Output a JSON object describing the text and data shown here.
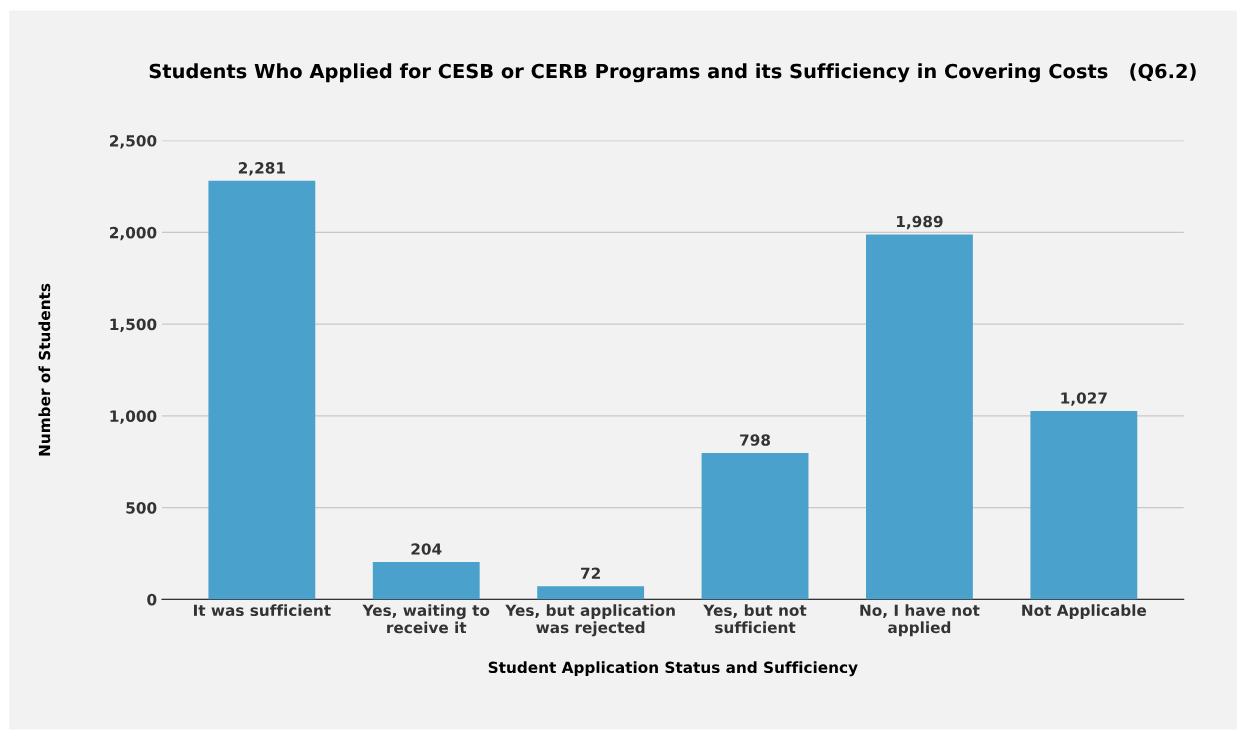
{
  "chart_data": {
    "type": "bar",
    "title": "Students Who Applied for CESB or CERB Programs and its Sufficiency in Covering Costs   (Q6.2)",
    "xlabel": "Student Application Status and Sufficiency",
    "ylabel": "Number of Students",
    "categories": [
      "It was sufficient",
      "Yes, waiting to\nreceive it",
      "Yes, but application\nwas rejected",
      "Yes, but not\nsufficient",
      "No, I have not\napplied",
      "Not Applicable"
    ],
    "values": [
      2281,
      204,
      72,
      798,
      1989,
      1027
    ],
    "value_labels": [
      "2,281",
      "204",
      "72",
      "798",
      "1,989",
      "1,027"
    ],
    "color": "#4aa1cb",
    "ylim": [
      0,
      2500
    ],
    "yticks": [
      0,
      500,
      {
        "value": 1000,
        "label": "1,000"
      },
      {
        "value": 1500,
        "label": "1,500"
      },
      {
        "value": 2000,
        "label": "2,000"
      },
      {
        "value": 2500,
        "label": "2,500"
      }
    ],
    "grid": "y",
    "legend": false
  }
}
